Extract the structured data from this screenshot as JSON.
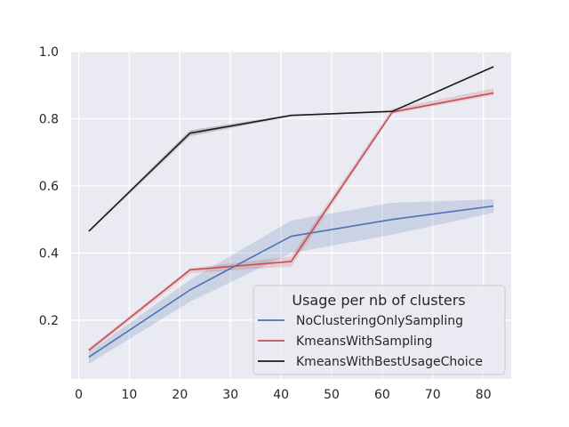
{
  "chart_data": {
    "type": "line",
    "title": "",
    "xlabel": "",
    "ylabel": "",
    "xlim": [
      -1.5,
      85.5
    ],
    "ylim": [
      0.025,
      1.0
    ],
    "xticks": [
      0,
      10,
      20,
      30,
      40,
      50,
      60,
      70,
      80
    ],
    "yticks": [
      0.2,
      0.4,
      0.6,
      0.8,
      1.0
    ],
    "xtick_labels": [
      "0",
      "10",
      "20",
      "30",
      "40",
      "50",
      "60",
      "70",
      "80"
    ],
    "ytick_labels": [
      "0.2",
      "0.4",
      "0.6",
      "0.8",
      "1.0"
    ],
    "grid": true,
    "background": "#EAEAF2",
    "legend": {
      "title": "Usage per nb of clusters",
      "placement": "lower right"
    },
    "x": [
      2,
      22,
      42,
      62,
      82
    ],
    "series": [
      {
        "name": "NoClusteringOnlySampling",
        "color": "#4C72B0",
        "values": [
          0.09,
          0.29,
          0.45,
          0.5,
          0.54
        ],
        "ci_low": [
          0.07,
          0.255,
          0.4,
          0.455,
          0.52
        ],
        "ci_high": [
          0.105,
          0.32,
          0.497,
          0.55,
          0.56
        ]
      },
      {
        "name": "KmeansWithSampling",
        "color": "#C44E52",
        "values": [
          0.11,
          0.35,
          0.375,
          0.82,
          0.877
        ],
        "ci_low": [
          0.105,
          0.34,
          0.36,
          0.815,
          0.87
        ],
        "ci_high": [
          0.117,
          0.355,
          0.39,
          0.83,
          0.89
        ]
      },
      {
        "name": "KmeansWithBestUsageChoice",
        "color": "#1A1A1A",
        "values": [
          0.465,
          0.757,
          0.81,
          0.822,
          0.955
        ],
        "ci_low": [
          0.462,
          0.748,
          0.808,
          0.82,
          0.953
        ],
        "ci_high": [
          0.468,
          0.766,
          0.812,
          0.824,
          0.957
        ]
      }
    ]
  }
}
